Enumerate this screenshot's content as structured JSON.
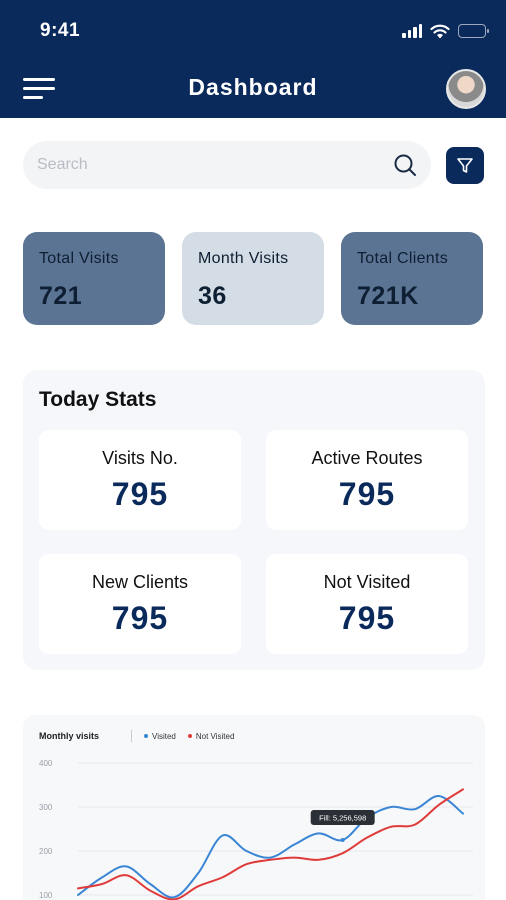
{
  "status_bar": {
    "time": "9:41"
  },
  "header": {
    "title": "Dashboard"
  },
  "search": {
    "placeholder": "Search"
  },
  "summary_cards": [
    {
      "label": "Total Visits",
      "value": "721"
    },
    {
      "label": "Month Visits",
      "value": "36"
    },
    {
      "label": "Total Clients",
      "value": "721K"
    }
  ],
  "today_stats": {
    "title": "Today Stats",
    "items": [
      {
        "label": "Visits No.",
        "value": "795"
      },
      {
        "label": "Active Routes",
        "value": "795"
      },
      {
        "label": "New Clients",
        "value": "795"
      },
      {
        "label": "Not Visited",
        "value": "795"
      }
    ]
  },
  "colors": {
    "primary": "#0b2a5c",
    "card_dark": "#5b7493",
    "card_light": "#d4dce5",
    "visited": "#3a86d4",
    "not_visited": "#e03b3b"
  },
  "chart_data": {
    "type": "line",
    "title": "Monthly visits",
    "legend": [
      "Visited",
      "Not Visited"
    ],
    "y_ticks": [
      "100",
      "200",
      "300",
      "400"
    ],
    "ylim": [
      100,
      400
    ],
    "x": [
      0,
      1,
      2,
      3,
      4,
      5,
      6,
      7,
      8,
      9,
      10,
      11,
      12,
      13,
      14,
      15,
      16
    ],
    "series": [
      {
        "name": "Visited",
        "color": "#3a86d4",
        "values": [
          100,
          140,
          165,
          125,
          95,
          150,
          235,
          200,
          185,
          215,
          240,
          225,
          275,
          300,
          295,
          325,
          285
        ]
      },
      {
        "name": "Not Visited",
        "color": "#e03b3b",
        "values": [
          115,
          125,
          145,
          110,
          90,
          120,
          140,
          170,
          180,
          185,
          180,
          195,
          230,
          255,
          260,
          305,
          340
        ]
      }
    ],
    "tooltip": {
      "label": "Fill: 5,256,598",
      "series": "Visited",
      "x": 11
    },
    "grid": true
  }
}
